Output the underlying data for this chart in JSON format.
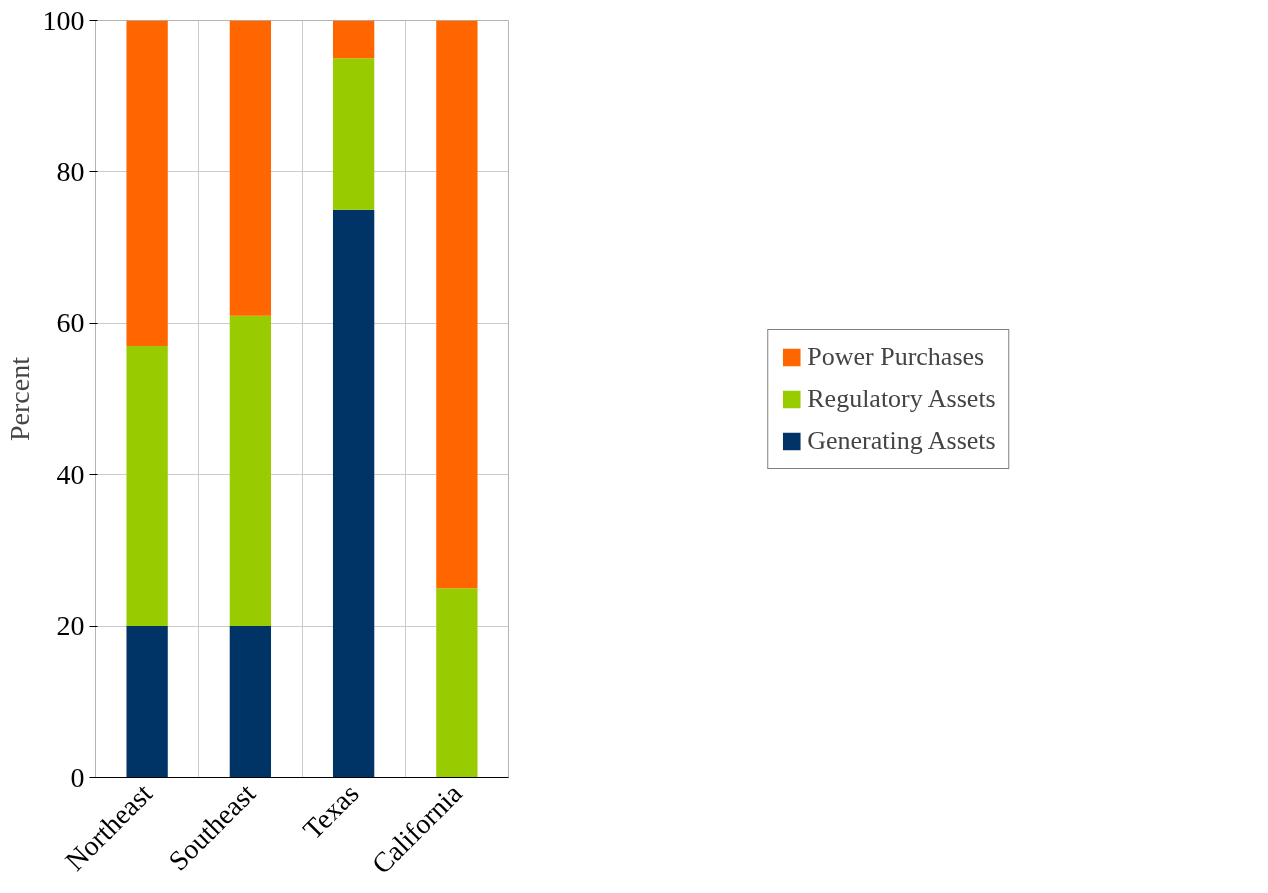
{
  "chart_data": {
    "type": "bar",
    "stacked": true,
    "ylabel": "Percent",
    "categories": [
      "Northeast",
      "Southeast",
      "Texas",
      "California"
    ],
    "series": [
      {
        "name": "Generating Assets",
        "color": "#003366",
        "values": [
          20,
          20,
          75,
          0
        ]
      },
      {
        "name": "Regulatory Assets",
        "color": "#99cc00",
        "values": [
          37,
          41,
          20,
          25
        ]
      },
      {
        "name": "Power Purchases",
        "color": "#ff6600",
        "values": [
          43,
          39,
          5,
          75
        ]
      }
    ],
    "ylim": [
      0,
      100
    ],
    "yticks": [
      0,
      20,
      40,
      60,
      80,
      100
    ],
    "grid": true,
    "legend": "right"
  }
}
